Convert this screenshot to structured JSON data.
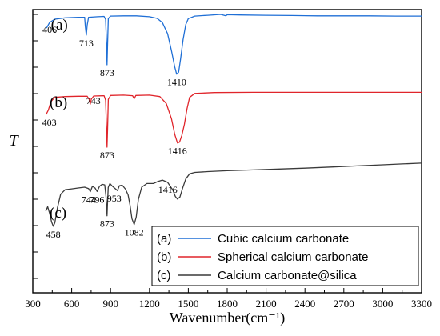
{
  "chart_data": {
    "type": "line",
    "xlabel": "Wavenumber(cm⁻¹)",
    "ylabel": "T",
    "xlim": [
      300,
      3300
    ],
    "x_ticks": [
      "300",
      "600",
      "900",
      "1200",
      "1500",
      "1800",
      "2100",
      "2400",
      "2700",
      "3000",
      "3300"
    ],
    "y_minor_ticks": 11,
    "legend_placement": "bottom-right",
    "series": [
      {
        "name": "Cubic calcium carbonate",
        "tag": "(a)",
        "color": "#1f6fd6",
        "points": [
          [
            406,
            93.5
          ],
          [
            430,
            95.5
          ],
          [
            470,
            96.6
          ],
          [
            550,
            97.1
          ],
          [
            650,
            97.3
          ],
          [
            700,
            97.3
          ],
          [
            705,
            94.2
          ],
          [
            713,
            91.0
          ],
          [
            720,
            94.5
          ],
          [
            730,
            97.3
          ],
          [
            800,
            97.5
          ],
          [
            850,
            97.6
          ],
          [
            862,
            96.5
          ],
          [
            869,
            88.0
          ],
          [
            873,
            80.5
          ],
          [
            877,
            88.0
          ],
          [
            883,
            96.8
          ],
          [
            900,
            97.7
          ],
          [
            1000,
            97.8
          ],
          [
            1100,
            97.8
          ],
          [
            1200,
            97.5
          ],
          [
            1260,
            96.9
          ],
          [
            1300,
            95.4
          ],
          [
            1340,
            91.5
          ],
          [
            1370,
            85.5
          ],
          [
            1395,
            79.8
          ],
          [
            1410,
            77.2
          ],
          [
            1425,
            77.9
          ],
          [
            1440,
            82.5
          ],
          [
            1460,
            89.5
          ],
          [
            1480,
            94.7
          ],
          [
            1500,
            96.8
          ],
          [
            1550,
            97.7
          ],
          [
            1650,
            98.0
          ],
          [
            1750,
            98.3
          ],
          [
            1790,
            97.8
          ],
          [
            1800,
            98.2
          ],
          [
            1900,
            98.1
          ],
          [
            2100,
            98.0
          ],
          [
            2300,
            97.9
          ],
          [
            2500,
            97.8
          ],
          [
            2700,
            97.8
          ],
          [
            2900,
            97.8
          ],
          [
            3100,
            97.7
          ],
          [
            3300,
            97.7
          ]
        ],
        "peaks": [
          {
            "label": "406",
            "x": 406,
            "y": 93.5
          },
          {
            "label": "713",
            "x": 713,
            "y": 91.0
          },
          {
            "label": "873",
            "x": 873,
            "y": 80.5
          },
          {
            "label": "1410",
            "x": 1410,
            "y": 77.2
          }
        ]
      },
      {
        "name": "Spherical calcium carbonate",
        "tag": "(b)",
        "color": "#e0252b",
        "points": [
          [
            403,
            63.0
          ],
          [
            420,
            64.5
          ],
          [
            440,
            67.5
          ],
          [
            470,
            69.0
          ],
          [
            550,
            69.3
          ],
          [
            650,
            69.4
          ],
          [
            720,
            69.4
          ],
          [
            735,
            68.3
          ],
          [
            743,
            66.6
          ],
          [
            752,
            68.4
          ],
          [
            770,
            69.5
          ],
          [
            850,
            69.6
          ],
          [
            862,
            68.0
          ],
          [
            869,
            58.0
          ],
          [
            873,
            51.4
          ],
          [
            877,
            58.0
          ],
          [
            883,
            68.3
          ],
          [
            900,
            69.7
          ],
          [
            1000,
            69.8
          ],
          [
            1070,
            69.6
          ],
          [
            1082,
            68.5
          ],
          [
            1095,
            69.7
          ],
          [
            1200,
            69.8
          ],
          [
            1280,
            69.3
          ],
          [
            1330,
            66.8
          ],
          [
            1370,
            61.5
          ],
          [
            1395,
            56.0
          ],
          [
            1416,
            52.9
          ],
          [
            1432,
            53.2
          ],
          [
            1450,
            55.6
          ],
          [
            1470,
            59.5
          ],
          [
            1490,
            65.0
          ],
          [
            1510,
            69.0
          ],
          [
            1550,
            70.4
          ],
          [
            1700,
            70.7
          ],
          [
            2000,
            70.8
          ],
          [
            2300,
            70.8
          ],
          [
            2600,
            70.8
          ],
          [
            2900,
            70.8
          ],
          [
            3100,
            70.8
          ],
          [
            3300,
            70.8
          ]
        ],
        "peaks": [
          {
            "label": "403",
            "x": 403,
            "y": 63.0
          },
          {
            "label": "743",
            "x": 743,
            "y": 66.6
          },
          {
            "label": "873",
            "x": 873,
            "y": 51.4
          },
          {
            "label": "1416",
            "x": 1416,
            "y": 52.9
          }
        ]
      },
      {
        "name": "Calcium carbonate@silica",
        "tag": "(c)",
        "color": "#3a3a3a",
        "points": [
          [
            400,
            28.8
          ],
          [
            415,
            30.4
          ],
          [
            430,
            28.0
          ],
          [
            445,
            25.0
          ],
          [
            458,
            23.5
          ],
          [
            470,
            24.7
          ],
          [
            490,
            30.0
          ],
          [
            515,
            34.8
          ],
          [
            550,
            36.4
          ],
          [
            600,
            36.7
          ],
          [
            650,
            37.0
          ],
          [
            700,
            37.3
          ],
          [
            730,
            36.8
          ],
          [
            744,
            35.7
          ],
          [
            760,
            37.6
          ],
          [
            780,
            37.0
          ],
          [
            796,
            35.8
          ],
          [
            815,
            37.6
          ],
          [
            835,
            38.3
          ],
          [
            855,
            38.1
          ],
          [
            865,
            34.0
          ],
          [
            870,
            30.0
          ],
          [
            873,
            27.2
          ],
          [
            876,
            31.0
          ],
          [
            882,
            37.2
          ],
          [
            895,
            38.6
          ],
          [
            915,
            37.6
          ],
          [
            940,
            36.6
          ],
          [
            953,
            36.1
          ],
          [
            968,
            37.8
          ],
          [
            990,
            38.0
          ],
          [
            1015,
            36.6
          ],
          [
            1035,
            34.6
          ],
          [
            1050,
            31.0
          ],
          [
            1065,
            26.2
          ],
          [
            1082,
            24.1
          ],
          [
            1098,
            26.8
          ],
          [
            1115,
            33.0
          ],
          [
            1140,
            37.3
          ],
          [
            1180,
            38.6
          ],
          [
            1230,
            38.6
          ],
          [
            1265,
            39.3
          ],
          [
            1300,
            39.8
          ],
          [
            1340,
            39.0
          ],
          [
            1380,
            36.3
          ],
          [
            1400,
            34.0
          ],
          [
            1416,
            33.1
          ],
          [
            1435,
            33.8
          ],
          [
            1455,
            36.8
          ],
          [
            1480,
            40.2
          ],
          [
            1510,
            42.0
          ],
          [
            1550,
            42.5
          ],
          [
            1650,
            42.8
          ],
          [
            1800,
            43.1
          ],
          [
            2000,
            43.4
          ],
          [
            2200,
            43.7
          ],
          [
            2400,
            44.0
          ],
          [
            2600,
            44.4
          ],
          [
            2800,
            44.8
          ],
          [
            3000,
            45.2
          ],
          [
            3150,
            45.5
          ],
          [
            3300,
            45.8
          ]
        ],
        "peaks": [
          {
            "label": "458",
            "x": 458,
            "y": 23.5
          },
          {
            "label": "744",
            "x": 744,
            "y": 35.7
          },
          {
            "label": "796",
            "x": 796,
            "y": 35.8
          },
          {
            "label": "953",
            "x": 953,
            "y": 36.1
          },
          {
            "label": "873",
            "x": 873,
            "y": 27.2
          },
          {
            "label": "1082",
            "x": 1082,
            "y": 24.1
          },
          {
            "label": "1416",
            "x": 1416,
            "y": 33.1
          }
        ]
      }
    ]
  }
}
